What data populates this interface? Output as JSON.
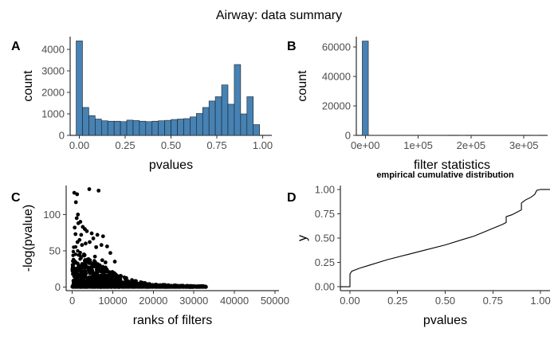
{
  "figure": {
    "title": "Airway: data summary"
  },
  "chart_data": [
    {
      "panel": "A",
      "type": "bar",
      "xlabel": "pvalues",
      "ylabel": "count",
      "xlim": [
        -0.05,
        1.05
      ],
      "ylim": [
        0,
        4600
      ],
      "xticks": [
        0,
        0.25,
        0.5,
        0.75,
        1
      ],
      "xtick_labels": [
        "0.00",
        "0.25",
        "0.50",
        "0.75",
        "1.00"
      ],
      "yticks": [
        0,
        1000,
        2000,
        3000,
        4000
      ],
      "ytick_labels": [
        "0",
        "1000",
        "2000",
        "3000",
        "4000"
      ],
      "bin_width": 0.0345,
      "bin_start": -0.0172,
      "values": [
        4400,
        1300,
        920,
        760,
        680,
        660,
        660,
        640,
        710,
        690,
        660,
        640,
        660,
        680,
        700,
        740,
        760,
        780,
        860,
        1020,
        1300,
        1600,
        1800,
        2350,
        1450,
        3300,
        1000,
        1800,
        500
      ]
    },
    {
      "panel": "B",
      "type": "bar",
      "xlabel": "filter statistics",
      "ylabel": "count",
      "xlim": [
        -17000,
        345000
      ],
      "ylim": [
        0,
        67000
      ],
      "xticks": [
        0,
        100000,
        200000,
        300000
      ],
      "xtick_labels": [
        "0e+00",
        "1e+05",
        "2e+05",
        "3e+05"
      ],
      "yticks": [
        0,
        20000,
        40000,
        60000
      ],
      "ytick_labels": [
        "0",
        "20000",
        "40000",
        "60000"
      ],
      "bin_width": 11500,
      "bin_start": -5750,
      "values": [
        64000,
        120,
        40,
        15,
        8,
        5,
        3,
        2,
        2,
        1,
        1,
        1,
        1,
        1,
        0,
        0,
        1,
        0,
        0,
        0,
        0,
        0,
        0,
        0,
        0,
        0,
        0,
        0,
        1
      ]
    },
    {
      "panel": "C",
      "type": "scatter",
      "xlabel": "ranks of filters",
      "ylabel": "-log(pvalue)",
      "xlim": [
        -1500,
        51000
      ],
      "ylim": [
        -5,
        140
      ],
      "xticks": [
        0,
        10000,
        20000,
        30000,
        40000,
        50000
      ],
      "xtick_labels": [
        "0",
        "10000",
        "20000",
        "30000",
        "40000",
        "50000"
      ],
      "yticks": [
        0,
        50,
        100
      ],
      "ytick_labels": [
        "0",
        "50",
        "100"
      ],
      "envelope": {
        "rank": [
          0,
          1000,
          2000,
          3000,
          4000,
          6000,
          8000,
          10000,
          12000,
          14000,
          16000,
          18000,
          20000,
          24000,
          28000,
          33000
        ],
        "max_neglogp": [
          60,
          55,
          50,
          45,
          42,
          35,
          28,
          22,
          16,
          11,
          8,
          6,
          4,
          3,
          2,
          1.5
        ]
      },
      "outliers": [
        {
          "x": 500,
          "y": 130
        },
        {
          "x": 1200,
          "y": 128
        },
        {
          "x": 4200,
          "y": 135
        },
        {
          "x": 6500,
          "y": 133
        },
        {
          "x": 900,
          "y": 117
        },
        {
          "x": 1400,
          "y": 100
        },
        {
          "x": 1100,
          "y": 95
        },
        {
          "x": 2000,
          "y": 90
        },
        {
          "x": 1500,
          "y": 88
        },
        {
          "x": 2600,
          "y": 83
        },
        {
          "x": 3100,
          "y": 80
        },
        {
          "x": 600,
          "y": 82
        },
        {
          "x": 3600,
          "y": 77
        },
        {
          "x": 4800,
          "y": 74
        },
        {
          "x": 6200,
          "y": 72
        },
        {
          "x": 7600,
          "y": 70
        },
        {
          "x": 5200,
          "y": 67
        },
        {
          "x": 2200,
          "y": 72
        },
        {
          "x": 800,
          "y": 73
        },
        {
          "x": 1800,
          "y": 65
        },
        {
          "x": 4300,
          "y": 62
        },
        {
          "x": 3300,
          "y": 60
        },
        {
          "x": 7200,
          "y": 58
        },
        {
          "x": 8600,
          "y": 56
        },
        {
          "x": 9400,
          "y": 47
        },
        {
          "x": 5600,
          "y": 42
        },
        {
          "x": 7400,
          "y": 37
        },
        {
          "x": 8200,
          "y": 34
        },
        {
          "x": 6800,
          "y": 30
        },
        {
          "x": 4900,
          "y": 32
        },
        {
          "x": 10500,
          "y": 35
        },
        {
          "x": 3800,
          "y": 38
        },
        {
          "x": 2900,
          "y": 45
        },
        {
          "x": 5900,
          "y": 55
        },
        {
          "x": 2400,
          "y": 58
        },
        {
          "x": 1300,
          "y": 62
        }
      ]
    },
    {
      "panel": "D",
      "type": "line",
      "title": "empirical cumulative distribution",
      "xlabel": "pvalues",
      "ylabel": "y",
      "xlim": [
        -0.05,
        1.05
      ],
      "ylim": [
        -0.04,
        1.04
      ],
      "xticks": [
        0,
        0.25,
        0.5,
        0.75,
        1
      ],
      "xtick_labels": [
        "0.00",
        "0.25",
        "0.50",
        "0.75",
        "1.00"
      ],
      "yticks": [
        0,
        0.25,
        0.5,
        0.75,
        1
      ],
      "ytick_labels": [
        "0.00",
        "0.25",
        "0.50",
        "0.75",
        "1.00"
      ],
      "x": [
        -0.05,
        0.0,
        0.0,
        0.01,
        0.05,
        0.1,
        0.2,
        0.3,
        0.4,
        0.5,
        0.6,
        0.65,
        0.7,
        0.75,
        0.8,
        0.82,
        0.82,
        0.85,
        0.88,
        0.9,
        0.9,
        0.92,
        0.95,
        0.97,
        0.98,
        1.0,
        1.05
      ],
      "y": [
        0.0,
        0.0,
        0.13,
        0.16,
        0.19,
        0.22,
        0.28,
        0.33,
        0.38,
        0.43,
        0.49,
        0.52,
        0.56,
        0.6,
        0.64,
        0.66,
        0.72,
        0.74,
        0.77,
        0.79,
        0.86,
        0.89,
        0.92,
        0.95,
        0.99,
        1.0,
        1.0
      ]
    }
  ]
}
